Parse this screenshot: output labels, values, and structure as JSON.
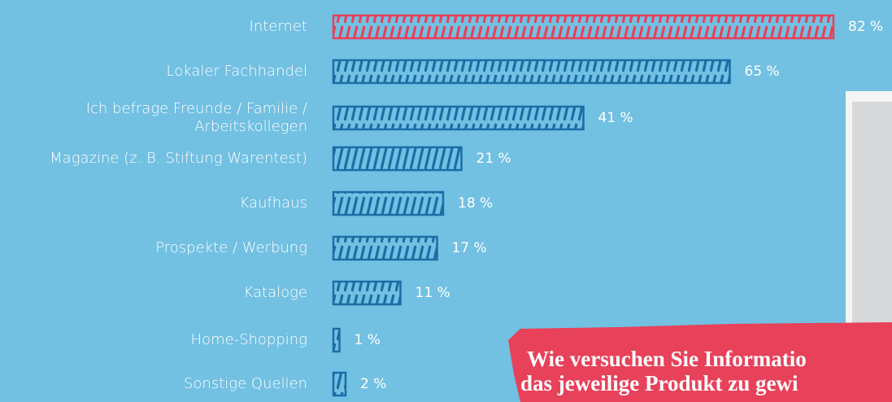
{
  "chart_data": {
    "type": "hbar",
    "categories": [
      "Internet",
      "Lokaler Fachhandel",
      "Ich befrage Freunde / Familie / Arbeitskollegen",
      "Magazine (z. B. Stiftung Warentest)",
      "Kaufhaus",
      "Prospekte / Werbung",
      "Kataloge",
      "Home-Shopping",
      "Sonstige Quellen"
    ],
    "values": [
      82,
      65,
      41,
      21,
      18,
      17,
      11,
      1,
      2
    ],
    "value_labels": [
      "82 %",
      "65 %",
      "41 %",
      "21 %",
      "18 %",
      "17 %",
      "11 %",
      "1 %",
      "2 %"
    ],
    "colors": [
      "#e8415a",
      "#1b6ea6",
      "#1b6ea6",
      "#1b6ea6",
      "#1b6ea6",
      "#1b6ea6",
      "#1b6ea6",
      "#1b6ea6",
      "#1b6ea6"
    ],
    "annotation": [
      "Wie versuchen Sie Informatio",
      "das jeweilige Produkt zu gewi"
    ]
  }
}
